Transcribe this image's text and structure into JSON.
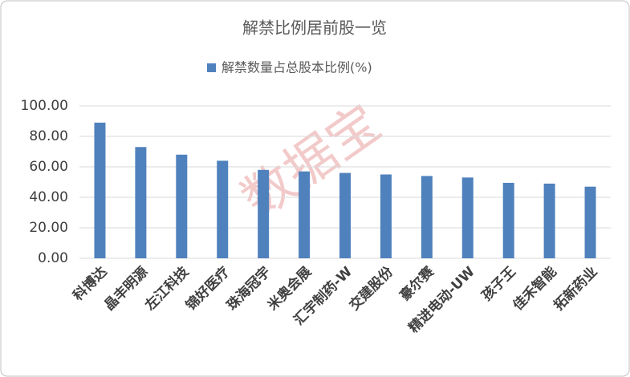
{
  "chart_data": {
    "type": "bar",
    "title": "解禁比例居前股一览",
    "watermark": "数据宝",
    "categories": [
      "科博达",
      "晶丰明源",
      "左江科技",
      "锦好医疗",
      "珠海冠宇",
      "米奥会展",
      "汇宇制药-W",
      "交建股份",
      "豪尔赛",
      "精进电动-UW",
      "孩子王",
      "佳禾智能",
      "拓新药业"
    ],
    "series": [
      {
        "name": "解禁数量占总股本比例(%)",
        "color": "#4f81bd",
        "values": [
          89,
          73,
          68,
          64,
          58,
          57,
          56,
          55,
          54,
          53,
          49.5,
          49,
          47
        ]
      }
    ],
    "ylim": [
      0,
      100
    ],
    "yticks": [
      {
        "value": 0,
        "label": "0.00"
      },
      {
        "value": 20,
        "label": "20.00"
      },
      {
        "value": 40,
        "label": "40.00"
      },
      {
        "value": 60,
        "label": "60.00"
      },
      {
        "value": 80,
        "label": "80.00"
      },
      {
        "value": 100,
        "label": "100.00"
      }
    ],
    "grid": true,
    "legend": "top"
  }
}
